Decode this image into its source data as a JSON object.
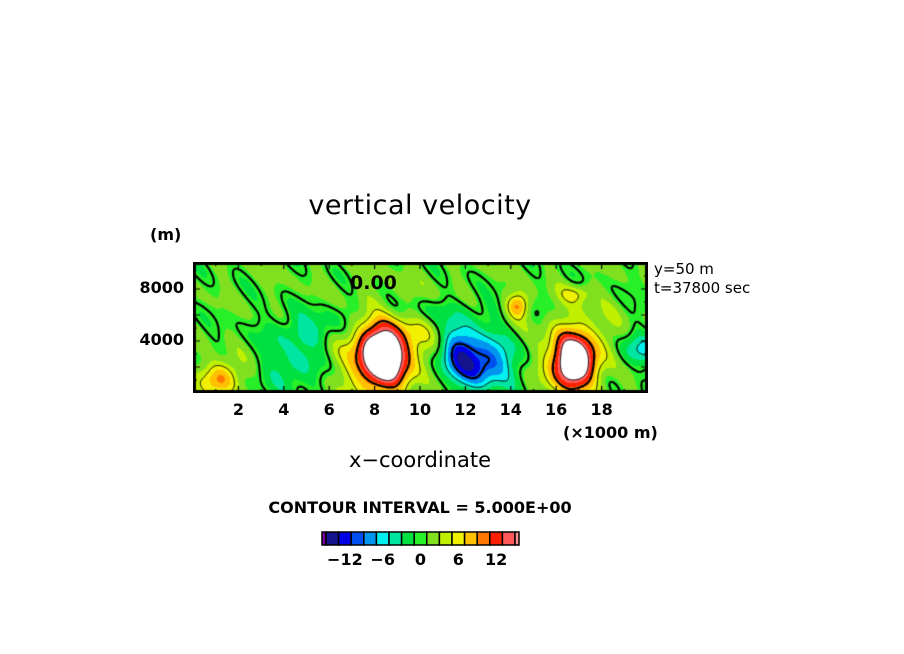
{
  "chart_data": {
    "type": "heatmap",
    "subtype": "filled contour",
    "title": "vertical velocity",
    "xlabel": "x−coordinate",
    "x_unit": "(×1000 m)",
    "y_unit": "(m)",
    "xlim": [
      0,
      20
    ],
    "ylim": [
      0,
      10000
    ],
    "x_ticks": [
      "2",
      "4",
      "6",
      "8",
      "10",
      "12",
      "14",
      "16",
      "18"
    ],
    "x_tick_values": [
      2,
      4,
      6,
      8,
      10,
      12,
      14,
      16,
      18
    ],
    "y_ticks": [
      "4000",
      "8000"
    ],
    "y_tick_values": [
      4000,
      8000
    ],
    "info": [
      "y=50 m",
      "t=37800 sec"
    ],
    "contour_interval_text": "CONTOUR INTERVAL = 5.000E+00",
    "contour_interval": 5,
    "contour_label": "0.00",
    "negative_contours": "dashed",
    "features": [
      {
        "x": 8.3,
        "z": 2700,
        "amp": 19,
        "sx": 0.75,
        "sz": 1700
      },
      {
        "x": 8.6,
        "z": 3600,
        "amp": 6,
        "sx": 1.6,
        "sz": 2400
      },
      {
        "x": 1.2,
        "z": 1100,
        "amp": 9,
        "sx": 0.55,
        "sz": 900
      },
      {
        "x": 12.5,
        "z": 2300,
        "amp": -13,
        "sx": 1.1,
        "sz": 1400
      },
      {
        "x": 11.7,
        "z": 3800,
        "amp": -6,
        "sx": 0.6,
        "sz": 1300
      },
      {
        "x": 16.7,
        "z": 2200,
        "amp": 17,
        "sx": 0.65,
        "sz": 1400
      },
      {
        "x": 16.9,
        "z": 3300,
        "amp": 6,
        "sx": 1.1,
        "sz": 2000
      },
      {
        "x": 14.3,
        "z": 6700,
        "amp": 9,
        "sx": 0.35,
        "sz": 700
      },
      {
        "x": 4.4,
        "z": 1800,
        "amp": -5,
        "sx": 0.9,
        "sz": 1200
      },
      {
        "x": 5.0,
        "z": 4600,
        "amp": -5,
        "sx": 1.2,
        "sz": 900
      },
      {
        "x": 9.5,
        "z": 6200,
        "amp": -3,
        "sx": 3.0,
        "sz": 800
      },
      {
        "x": 19.6,
        "z": 3200,
        "amp": -6,
        "sx": 0.7,
        "sz": 900
      },
      {
        "x": 16.9,
        "z": 7600,
        "amp": 4,
        "sx": 0.5,
        "sz": 500
      }
    ],
    "colorbar": {
      "min": -15,
      "max": 15,
      "step": 2,
      "tick_labels": [
        "−12",
        "−6",
        "0",
        "6",
        "12"
      ],
      "tick_values": [
        -12,
        -6,
        0,
        6,
        12
      ],
      "colors": [
        "#7a00a8",
        "#14148c",
        "#0000e6",
        "#0050f0",
        "#0096f0",
        "#00f0f0",
        "#00e6a0",
        "#00e040",
        "#28f028",
        "#80e020",
        "#c0f000",
        "#f0f000",
        "#ffc000",
        "#ff7800",
        "#ff2000",
        "#ff5a5a",
        "#ff9090"
      ]
    }
  }
}
